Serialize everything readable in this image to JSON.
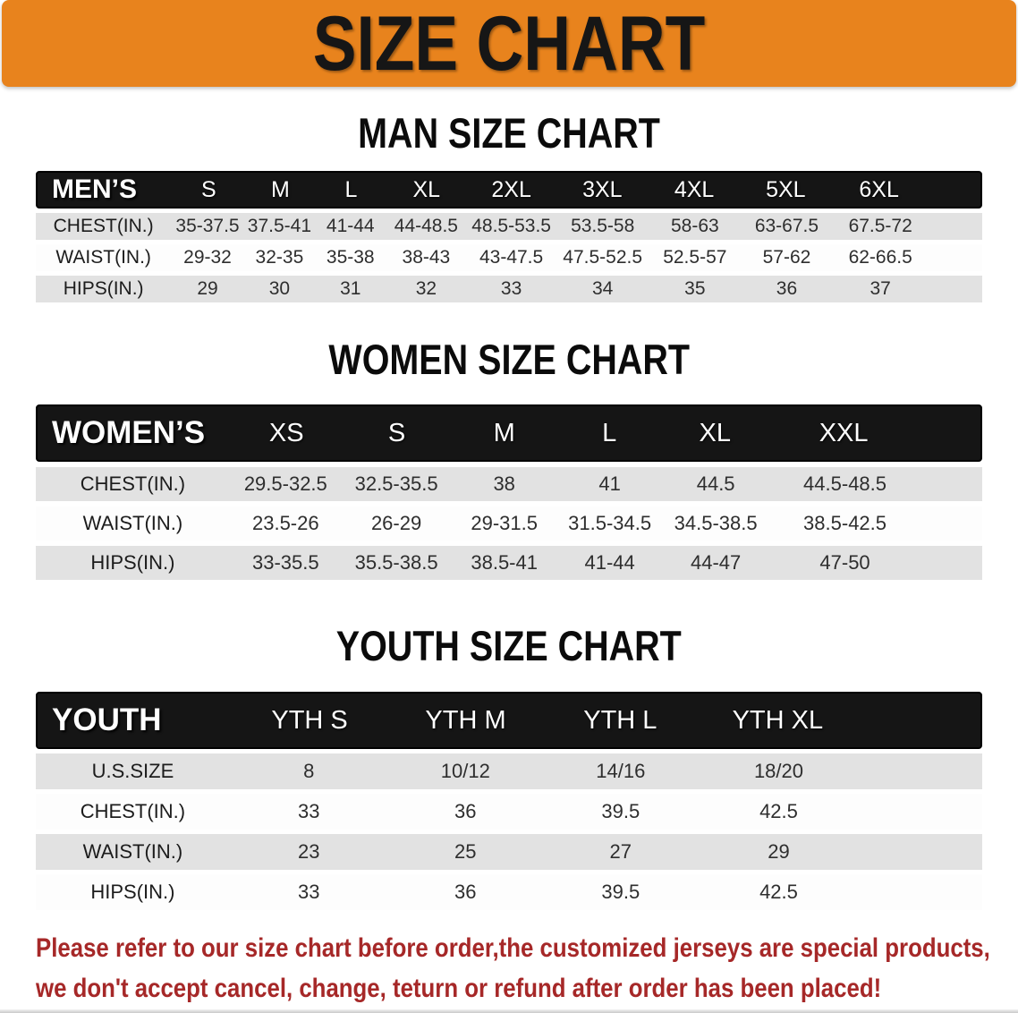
{
  "banner": {
    "title": "SIZE CHART",
    "bg_color": "#e8831d",
    "text_color": "#161616"
  },
  "sections": [
    {
      "id": "men",
      "title": "MAN SIZE CHART",
      "header_label": "MEN’S",
      "columns": [
        "S",
        "M",
        "L",
        "XL",
        "2XL",
        "3XL",
        "4XL",
        "5XL",
        "6XL"
      ],
      "rows": [
        {
          "label": "CHEST(IN.)",
          "values": [
            "35-37.5",
            "37.5-41",
            "41-44",
            "44-48.5",
            "48.5-53.5",
            "53.5-58",
            "58-63",
            "63-67.5",
            "67.5-72"
          ]
        },
        {
          "label": "WAIST(IN.)",
          "values": [
            "29-32",
            "32-35",
            "35-38",
            "38-43",
            "43-47.5",
            "47.5-52.5",
            "52.5-57",
            "57-62",
            "62-66.5"
          ]
        },
        {
          "label": "HIPS(IN.)",
          "values": [
            "29",
            "30",
            "31",
            "32",
            "33",
            "34",
            "35",
            "36",
            "37"
          ]
        }
      ]
    },
    {
      "id": "women",
      "title": "WOMEN SIZE CHART",
      "header_label": "WOMEN’S",
      "columns": [
        "XS",
        "S",
        "M",
        "L",
        "XL",
        "XXL"
      ],
      "rows": [
        {
          "label": "CHEST(IN.)",
          "values": [
            "29.5-32.5",
            "32.5-35.5",
            "38",
            "41",
            "44.5",
            "44.5-48.5"
          ]
        },
        {
          "label": "WAIST(IN.)",
          "values": [
            "23.5-26",
            "26-29",
            "29-31.5",
            "31.5-34.5",
            "34.5-38.5",
            "38.5-42.5"
          ]
        },
        {
          "label": "HIPS(IN.)",
          "values": [
            "33-35.5",
            "35.5-38.5",
            "38.5-41",
            "41-44",
            "44-47",
            "47-50"
          ]
        }
      ]
    },
    {
      "id": "youth",
      "title": "YOUTH SIZE CHART",
      "header_label": "YOUTH",
      "columns": [
        "YTH S",
        "YTH M",
        "YTH L",
        "YTH XL"
      ],
      "rows": [
        {
          "label": "U.S.SIZE",
          "values": [
            "8",
            "10/12",
            "14/16",
            "18/20"
          ]
        },
        {
          "label": "CHEST(IN.)",
          "values": [
            "33",
            "36",
            "39.5",
            "42.5"
          ]
        },
        {
          "label": "WAIST(IN.)",
          "values": [
            "23",
            "25",
            "27",
            "29"
          ]
        },
        {
          "label": "HIPS(IN.)",
          "values": [
            "33",
            "36",
            "39.5",
            "42.5"
          ]
        }
      ]
    }
  ],
  "footer": {
    "line1": "Please refer to our size chart before order,the customized jerseys are special products,",
    "line2": "we don't accept cancel, change, teturn or refund after order has been placed!",
    "text_color": "#a62828"
  },
  "colors": {
    "header_bar": "#151515",
    "row_shaded": "#e2e2e2",
    "row_plain": "#fdfdfd"
  }
}
